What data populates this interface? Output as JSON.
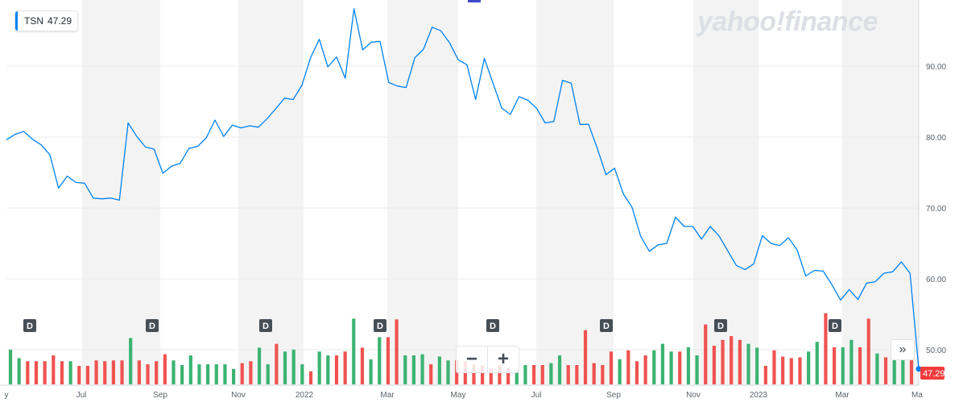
{
  "ticker": {
    "symbol": "TSN",
    "price": "47.29"
  },
  "logo_text": "yahoo!finance",
  "controls": {
    "zoom_out": "−",
    "zoom_in": "+",
    "forward": "»"
  },
  "colors": {
    "line": "#0081f2",
    "up": "#3cb371",
    "down": "#ef5350",
    "badge": "#f23c3c",
    "band": "#f3f3f3"
  },
  "chart_data": {
    "type": "line",
    "ylim": [
      45,
      99
    ],
    "y_ticks": [
      50,
      60,
      70,
      80,
      90
    ],
    "y_tick_labels": [
      "50.00",
      "60.00",
      "70.00",
      "80.00",
      "90.00"
    ],
    "x_labels": [
      "y",
      "Jul",
      "Sep",
      "Nov",
      "2022",
      "Mar",
      "May",
      "Jul",
      "Sep",
      "Nov",
      "2023",
      "Mar",
      "Ma"
    ],
    "last_price": "47.29",
    "dividend_markers": [
      "D",
      "D",
      "D",
      "D",
      "D",
      "D",
      "D",
      "D"
    ],
    "prices": [
      79.6,
      80.4,
      80.8,
      79.7,
      78.9,
      77.5,
      72.8,
      74.5,
      73.6,
      73.5,
      71.4,
      71.3,
      71.4,
      71.1,
      82.0,
      80.1,
      78.6,
      78.3,
      74.9,
      75.9,
      76.3,
      78.4,
      78.7,
      79.9,
      82.4,
      80.1,
      81.7,
      81.3,
      81.6,
      81.4,
      82.6,
      84.0,
      85.5,
      85.3,
      87.3,
      91.2,
      93.8,
      89.9,
      91.3,
      88.3,
      98.1,
      92.3,
      93.4,
      93.5,
      87.7,
      87.2,
      87.0,
      91.2,
      92.4,
      95.5,
      95.0,
      93.3,
      90.9,
      90.2,
      85.3,
      91.1,
      87.6,
      84.1,
      83.2,
      85.7,
      85.2,
      84.1,
      82.0,
      82.2,
      88.0,
      87.6,
      81.8,
      81.8,
      78.4,
      74.7,
      75.6,
      72.0,
      70.1,
      66.0,
      63.9,
      64.8,
      65.0,
      68.7,
      67.4,
      67.4,
      65.6,
      67.4,
      66.1,
      64.0,
      61.9,
      61.3,
      62.1,
      66.1,
      65.0,
      64.7,
      65.8,
      64.1,
      60.4,
      61.2,
      61.1,
      59.2,
      57.0,
      58.5,
      57.1,
      59.4,
      59.6,
      60.8,
      61.0,
      62.4,
      60.8,
      47.3
    ],
    "volume_up": [
      true,
      true,
      false,
      false,
      false,
      false,
      false,
      true,
      false,
      false,
      false,
      false,
      false,
      false,
      true,
      false,
      false,
      false,
      false,
      true,
      true,
      true,
      true,
      true,
      true,
      true,
      true,
      false,
      false,
      true,
      true,
      false,
      true,
      true,
      true,
      false,
      true,
      true,
      false,
      false,
      true,
      false,
      true,
      true,
      false,
      false,
      true,
      true,
      true,
      false,
      true,
      true,
      false,
      false,
      false,
      false,
      false,
      false,
      false,
      true,
      true,
      false,
      false,
      true,
      true,
      false,
      false,
      false,
      false,
      false,
      false,
      true,
      false,
      false,
      false,
      true,
      true,
      true,
      false,
      true,
      true,
      false,
      false,
      false,
      false,
      false,
      true,
      true,
      false,
      false,
      false,
      false,
      false,
      true,
      true,
      false,
      false,
      true,
      true,
      false,
      false,
      true,
      false,
      true,
      true,
      false
    ],
    "volume_rel": [
      0.9,
      0.68,
      0.6,
      0.6,
      0.6,
      0.75,
      0.6,
      0.6,
      0.48,
      0.48,
      0.62,
      0.6,
      0.62,
      0.62,
      1.2,
      0.62,
      0.52,
      0.6,
      0.78,
      0.62,
      0.5,
      0.75,
      0.52,
      0.52,
      0.52,
      0.52,
      0.4,
      0.55,
      0.6,
      0.95,
      0.52,
      1.05,
      0.85,
      0.9,
      0.52,
      0.34,
      0.85,
      0.75,
      0.75,
      0.85,
      1.7,
      0.95,
      0.65,
      1.22,
      1.22,
      1.68,
      0.75,
      0.75,
      0.78,
      0.52,
      0.72,
      0.62,
      0.62,
      0.6,
      0.52,
      0.5,
      0.42,
      0.5,
      0.42,
      0.36,
      0.5,
      0.5,
      0.5,
      0.55,
      0.75,
      0.5,
      0.5,
      1.4,
      0.55,
      0.5,
      0.85,
      0.65,
      0.88,
      0.6,
      0.75,
      0.88,
      1.05,
      0.85,
      0.85,
      0.96,
      0.75,
      1.55,
      1.0,
      1.15,
      1.25,
      1.15,
      1.05,
      0.95,
      0.48,
      0.88,
      0.72,
      0.68,
      0.7,
      0.85,
      1.1,
      1.84,
      0.96,
      0.96,
      1.15,
      0.96,
      1.7,
      0.8,
      0.7,
      0.7,
      1.0,
      0.8
    ]
  }
}
